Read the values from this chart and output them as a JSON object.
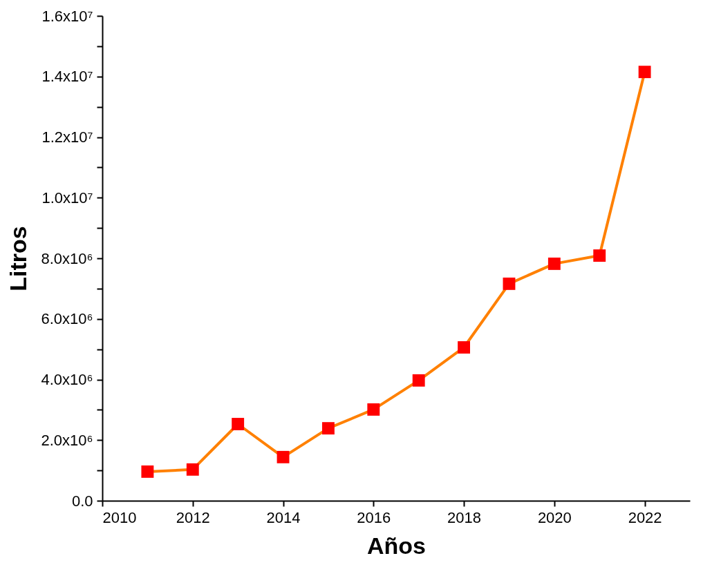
{
  "chart_data": {
    "type": "line",
    "xlabel": "Años",
    "ylabel": "Litros",
    "x": [
      2011,
      2012,
      2013,
      2014,
      2015,
      2016,
      2017,
      2018,
      2019,
      2020,
      2021,
      2022
    ],
    "series": [
      {
        "color": "#ff8000",
        "colors": [
          "#ff0000",
          "#ff0000",
          "#ff0000",
          "#ff0000",
          "#ff0000",
          "#ff0000",
          "#ff0000",
          "#ff0000",
          "#ff0000",
          "#ff0000",
          "#ff0000",
          "#ff0000"
        ],
        "values": [
          960000,
          1030000,
          2530000,
          1440000,
          2390000,
          3010000,
          3970000,
          5060000,
          7160000,
          7820000,
          8090000,
          14150000
        ]
      }
    ],
    "xlim": [
      2010,
      2023
    ],
    "xticks": [
      2010,
      2012,
      2014,
      2016,
      2018,
      2020,
      2022
    ],
    "ylim": [
      0,
      16000000
    ],
    "yticks": [
      {
        "value": 0,
        "label": "0.0"
      },
      {
        "value": 1000000,
        "label": null
      },
      {
        "value": 2000000,
        "label": "2.0x10⁶"
      },
      {
        "value": 3000000,
        "label": null
      },
      {
        "value": 4000000,
        "label": "4.0x10⁶"
      },
      {
        "value": 5000000,
        "label": null
      },
      {
        "value": 6000000,
        "label": "6.0x10⁶"
      },
      {
        "value": 7000000,
        "label": null
      },
      {
        "value": 8000000,
        "label": "8.0x10⁶"
      },
      {
        "value": 9000000,
        "label": null
      },
      {
        "value": 10000000,
        "label": "1.0x10⁷"
      },
      {
        "value": 11000000,
        "label": null
      },
      {
        "value": 12000000,
        "label": "1.2x10⁷"
      },
      {
        "value": 13000000,
        "label": null
      },
      {
        "value": 14000000,
        "label": "1.4x10⁷"
      },
      {
        "value": 15000000,
        "label": null
      },
      {
        "value": 16000000,
        "label": "1.6x10⁷"
      }
    ],
    "grid": false,
    "marker": "square",
    "line_style": "solid"
  }
}
